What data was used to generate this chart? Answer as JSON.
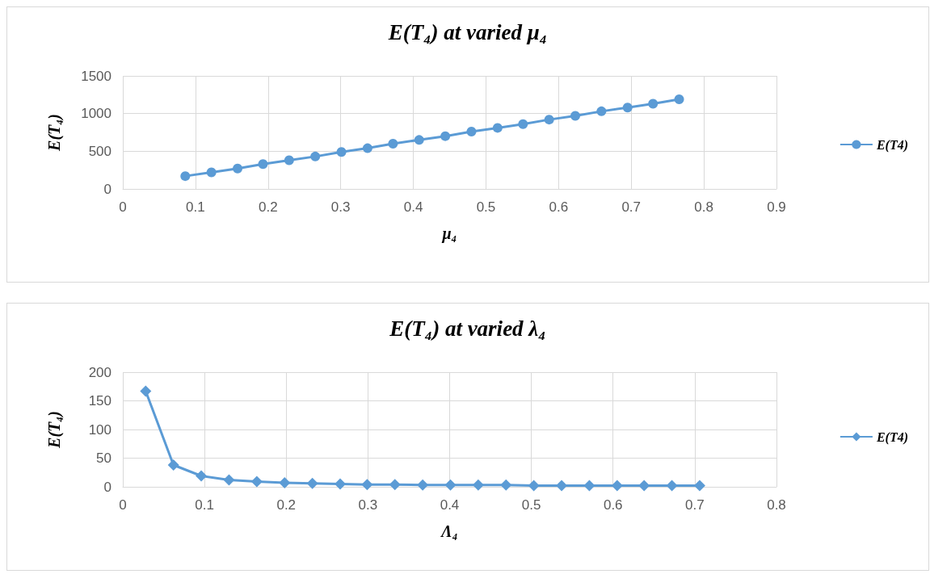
{
  "chart_data": [
    {
      "type": "line",
      "title": "E(T₄) at varied μ₄",
      "xlabel": "μ₄",
      "ylabel": "E(T₄)",
      "marker": "circle",
      "legend": "right",
      "grid": true,
      "xlim": [
        0,
        0.9
      ],
      "xticks": [
        0,
        0.1,
        0.2,
        0.3,
        0.4,
        0.5,
        0.6,
        0.7,
        0.8,
        0.9
      ],
      "ylim": [
        0,
        1500
      ],
      "yticks": [
        0,
        500,
        1000,
        1500
      ],
      "series": [
        {
          "name": "E(T4)",
          "color": "#5b9bd5",
          "x": [
            0.086,
            0.122,
            0.158,
            0.193,
            0.229,
            0.265,
            0.301,
            0.337,
            0.372,
            0.408,
            0.444,
            0.48,
            0.516,
            0.551,
            0.587,
            0.623,
            0.659,
            0.695,
            0.73,
            0.766
          ],
          "values": [
            170,
            220,
            270,
            330,
            380,
            430,
            490,
            540,
            600,
            650,
            700,
            760,
            810,
            860,
            920,
            970,
            1030,
            1080,
            1130,
            1190
          ]
        }
      ]
    },
    {
      "type": "line",
      "title": "E(T₄) at varied λ₄",
      "xlabel": "Λ₄",
      "ylabel": "E(T₄)",
      "marker": "diamond",
      "legend": "right",
      "grid": true,
      "xlim": [
        0,
        0.8
      ],
      "xticks": [
        0,
        0.1,
        0.2,
        0.3,
        0.4,
        0.5,
        0.6,
        0.7,
        0.8
      ],
      "ylim": [
        0,
        200
      ],
      "yticks": [
        0,
        50,
        100,
        150,
        200
      ],
      "series": [
        {
          "name": "E(T4)",
          "color": "#5b9bd5",
          "x": [
            0.028,
            0.062,
            0.096,
            0.13,
            0.164,
            0.198,
            0.232,
            0.266,
            0.299,
            0.333,
            0.367,
            0.401,
            0.435,
            0.469,
            0.503,
            0.537,
            0.571,
            0.605,
            0.638,
            0.672,
            0.706
          ],
          "values": [
            167,
            38,
            19,
            12,
            9,
            7,
            6,
            5,
            4,
            4,
            3,
            3,
            3,
            3,
            2,
            2,
            2,
            2,
            2,
            2,
            2
          ]
        }
      ]
    }
  ]
}
